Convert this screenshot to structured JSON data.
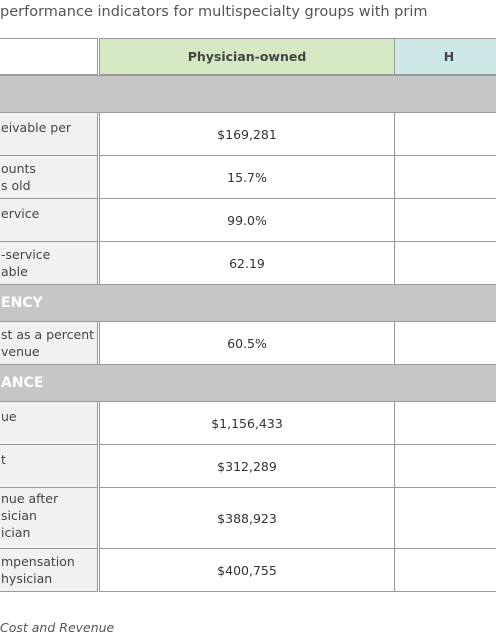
{
  "title": "performance indicators for multispecialty groups with prim",
  "table": {
    "headers": [
      "Physician-owned",
      "H"
    ],
    "rows": [
      {
        "kind": "section"
      },
      {
        "label": [
          "eivable per"
        ],
        "value": "$169,281"
      },
      {
        "label": [
          "ounts",
          "s old"
        ],
        "value": "15.7%"
      },
      {
        "label": [
          "ervice"
        ],
        "value": "99.0%"
      },
      {
        "label": [
          "-service",
          "able"
        ],
        "value": "62.19"
      },
      {
        "kind": "section",
        "label": [
          "ENCY"
        ]
      },
      {
        "label": [
          "st as a percent",
          "venue"
        ],
        "value": "60.5%"
      },
      {
        "kind": "section",
        "label": [
          "ANCE"
        ]
      },
      {
        "label": [
          "ue"
        ],
        "value": "$1,156,433"
      },
      {
        "label": [
          "t"
        ],
        "value": "$312,289"
      },
      {
        "label": [
          "nue after",
          "sician",
          "ician"
        ],
        "value": "$388,923"
      },
      {
        "label": [
          "mpensation",
          "hysician"
        ],
        "value": "$400,755"
      }
    ]
  },
  "footnote": "Cost and Revenue"
}
